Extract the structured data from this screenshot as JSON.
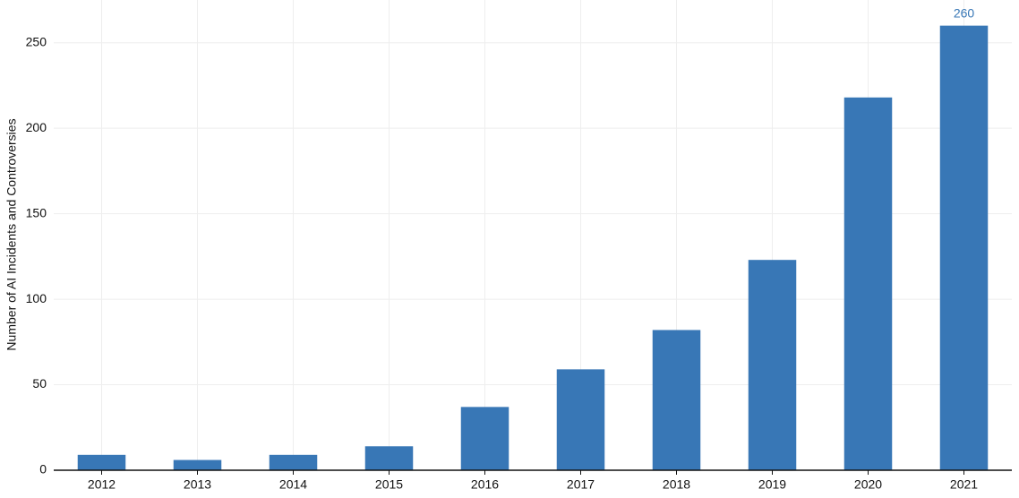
{
  "chart_data": {
    "type": "bar",
    "y_label": "Number of AI Incidents and Controversies",
    "categories": [
      "2012",
      "2013",
      "2014",
      "2015",
      "2016",
      "2017",
      "2018",
      "2019",
      "2020",
      "2021"
    ],
    "values": [
      9,
      6,
      9,
      14,
      37,
      59,
      82,
      123,
      218,
      260
    ],
    "value_labels": [
      null,
      null,
      null,
      null,
      null,
      null,
      null,
      null,
      null,
      "260"
    ],
    "color": "#3877b6",
    "ylim": [
      0,
      275
    ],
    "yticks": [
      0,
      50,
      100,
      150,
      200,
      250
    ],
    "grid": true
  }
}
